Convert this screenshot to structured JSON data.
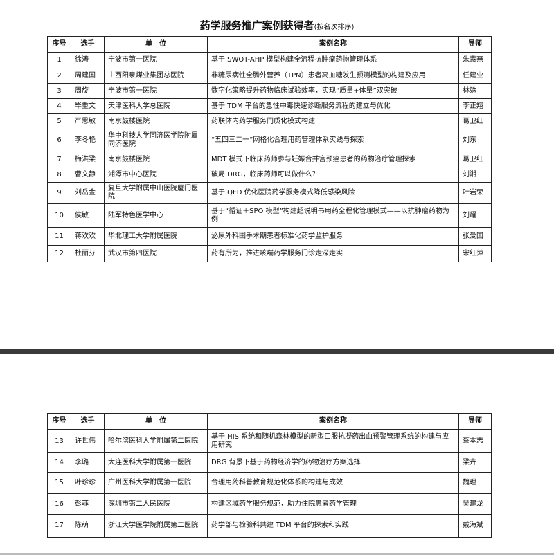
{
  "title": "药学服务推广案例获得者",
  "subtitle": "(按名次排序)",
  "headers": [
    "序号",
    "选手",
    "单　位",
    "案例名称",
    "导师"
  ],
  "page1_rows": [
    {
      "no": "1",
      "name": "徐涛",
      "unit": "宁波市第一医院",
      "case": "基于 SWOT-AHP 模型构建全流程抗肿瘤药物管理体系",
      "mentor": "朱素燕"
    },
    {
      "no": "2",
      "name": "周建国",
      "unit": "山西阳泉煤业集团总医院",
      "case": "非糖尿病性全肠外营养（TPN）患者高血糖发生预测模型的构建及应用",
      "mentor": "任建业"
    },
    {
      "no": "3",
      "name": "周旋",
      "unit": "宁波市第一医院",
      "case": "数字化策略提升药物临床试验效率，实现“质量+体量”双突破",
      "mentor": "林殊"
    },
    {
      "no": "4",
      "name": "毕重文",
      "unit": "天津医科大学总医院",
      "case": "基于 TDM 平台的急性中毒快速诊断服务流程的建立与优化",
      "mentor": "李正翔"
    },
    {
      "no": "5",
      "name": "严思敏",
      "unit": "南京鼓楼医院",
      "case": "药联体内药学服务同质化模式构建",
      "mentor": "葛卫红"
    },
    {
      "no": "6",
      "name": "李冬艳",
      "unit": "华中科技大学同济医学院附属同济医院",
      "case": "“五四三二一”网格化合理用药管理体系实践与探索",
      "mentor": "刘东"
    },
    {
      "no": "7",
      "name": "梅洪梁",
      "unit": "南京鼓楼医院",
      "case": "MDT 模式下临床药师参与妊娠合并宫颈癌患者的药物治疗管理探索",
      "mentor": "葛卫红"
    },
    {
      "no": "8",
      "name": "曹文静",
      "unit": "湘潭市中心医院",
      "case": "破局 DRG，临床药师可以做什么？",
      "mentor": "刘湘"
    },
    {
      "no": "9",
      "name": "刘岳金",
      "unit": "复旦大学附属中山医院厦门医院",
      "case": "基于 QFD 优化医院药学服务模式降低感染风险",
      "mentor": "叶岩荣"
    },
    {
      "no": "10",
      "name": "侯敏",
      "unit": "陆军特色医学中心",
      "case": "基于“循证＋SPO 模型”构建超说明书用药全程化管理模式——以抗肿瘤药物为例",
      "mentor": "刘耀"
    },
    {
      "no": "11",
      "name": "蒋欢欢",
      "unit": "华北理工大学附属医院",
      "case": "泌尿外科围手术期患者标准化药学监护服务",
      "mentor": "张爱国"
    },
    {
      "no": "12",
      "name": "杜丽芬",
      "unit": "武汉市第四医院",
      "case": "药有所为，推进咳喘药学服务门诊走深走实",
      "mentor": "宋红萍"
    }
  ],
  "page2_rows": [
    {
      "no": "13",
      "name": "许世伟",
      "unit": "哈尔滨医科大学附属第二医院",
      "case": "基于 HIS 系统和随机森林模型的新型口服抗凝药出血预警管理系统的构建与应用研究",
      "mentor": "蔡本志"
    },
    {
      "no": "14",
      "name": "李璐",
      "unit": "大连医科大学附属第一医院",
      "case": "DRG 背景下基于药物经济学的药物治疗方案选择",
      "mentor": "梁卉"
    },
    {
      "no": "15",
      "name": "叶珍珍",
      "unit": "广州医科大学附属第一医院",
      "case": "合理用药科普教育规范化体系的构建与成效",
      "mentor": "魏理"
    },
    {
      "no": "16",
      "name": "彭菲",
      "unit": "深圳市第二人民医院",
      "case": "构建区域药学服务规范，助力住院患者药学管理",
      "mentor": "吴建龙"
    },
    {
      "no": "17",
      "name": "陈萌",
      "unit": "浙江大学医学院附属第二医院",
      "case": "药学部与检验科共建 TDM 平台的探索和实践",
      "mentor": "戴海斌"
    }
  ]
}
